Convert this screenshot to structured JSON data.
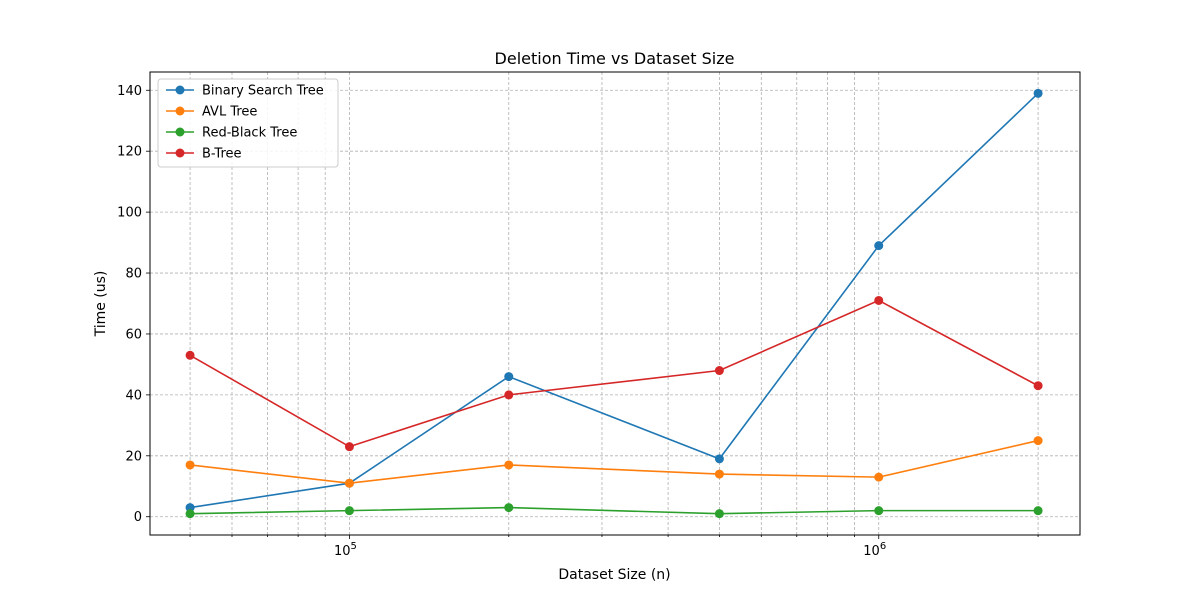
{
  "chart_data": {
    "type": "line",
    "title": "Deletion Time vs Dataset Size",
    "xlabel": "Dataset Size (n)",
    "ylabel": "Time (us)",
    "xscale": "log",
    "grid": true,
    "legend_position": "top-left",
    "x": [
      50000,
      100000,
      200000,
      500000,
      1000000,
      2000000
    ],
    "xlim": [
      42000,
      2400000
    ],
    "ylim": [
      -6,
      146
    ],
    "y_ticks": [
      0,
      20,
      40,
      60,
      80,
      100,
      120,
      140
    ],
    "x_ticks": [
      {
        "value": 100000,
        "base": "10",
        "exp": "5"
      },
      {
        "value": 1000000,
        "base": "10",
        "exp": "6"
      }
    ],
    "series": [
      {
        "name": "Binary Search Tree",
        "color": "#1f77b4",
        "values": [
          3,
          11,
          46,
          19,
          89,
          139
        ]
      },
      {
        "name": "AVL Tree",
        "color": "#ff7f0e",
        "values": [
          17,
          11,
          17,
          14,
          13,
          25
        ]
      },
      {
        "name": "Red-Black Tree",
        "color": "#2ca02c",
        "values": [
          1,
          2,
          3,
          1,
          2,
          2
        ]
      },
      {
        "name": "B-Tree",
        "color": "#d62728",
        "values": [
          53,
          23,
          40,
          48,
          71,
          43
        ]
      }
    ]
  }
}
